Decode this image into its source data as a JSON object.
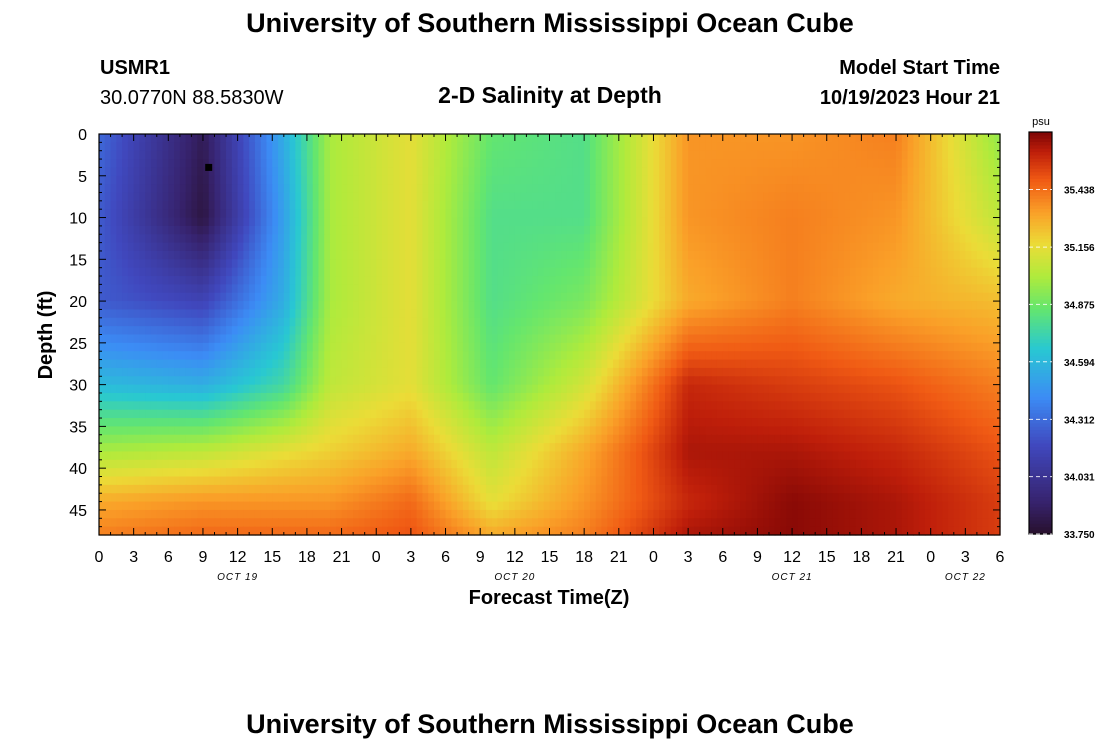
{
  "header": {
    "title": "University of Southern Mississippi Ocean Cube",
    "station_id": "USMR1",
    "station_coords": "30.0770N  88.5830W",
    "plot_title": "2-D Salinity at Depth",
    "model_start_label": "Model Start Time",
    "model_start_value": "10/19/2023 Hour 21"
  },
  "footer": {
    "title": "University of Southern Mississippi Ocean Cube"
  },
  "chart_data": {
    "type": "heatmap",
    "title": "2-D Salinity at Depth",
    "xlabel": "Forecast Time(Z)",
    "ylabel": "Depth (ft)",
    "x_range_hours": [
      0,
      78
    ],
    "x_tick_labels": [
      "0",
      "3",
      "6",
      "9",
      "12",
      "15",
      "18",
      "21",
      "0",
      "3",
      "6",
      "9",
      "12",
      "15",
      "18",
      "21",
      "0",
      "3",
      "6",
      "9",
      "12",
      "15",
      "18",
      "21",
      "0",
      "3",
      "6"
    ],
    "date_labels": [
      {
        "text": "OCT 19",
        "hour": 12
      },
      {
        "text": "OCT 20",
        "hour": 36
      },
      {
        "text": "OCT 21",
        "hour": 60
      },
      {
        "text": "OCT 22",
        "hour": 75
      }
    ],
    "ylim": [
      0,
      48
    ],
    "y_tick_labels": [
      "0",
      "5",
      "10",
      "15",
      "20",
      "25",
      "30",
      "35",
      "40",
      "45"
    ],
    "y_ticks": [
      0,
      5,
      10,
      15,
      20,
      25,
      30,
      35,
      40,
      45
    ],
    "colorbar": {
      "unit": "psu",
      "min": 33.75,
      "max": 35.72,
      "tick_values": [
        33.75,
        34.031,
        34.312,
        34.594,
        34.875,
        35.156,
        35.438
      ],
      "tick_labels": [
        "33.750",
        "34.031",
        "34.312",
        "34.594",
        "34.875",
        "35.156",
        "35.438"
      ]
    },
    "marker": {
      "hour": 9.5,
      "depth": 4
    },
    "salinity_grid": {
      "hours": [
        0,
        9,
        16,
        20,
        27,
        34,
        42,
        51,
        60,
        69,
        78
      ],
      "depths": [
        0,
        10,
        20,
        30,
        38,
        44,
        48
      ],
      "values": [
        [
          34.3,
          33.85,
          34.55,
          35.0,
          35.15,
          34.85,
          34.8,
          35.35,
          35.35,
          35.4,
          34.95
        ],
        [
          34.25,
          33.8,
          34.5,
          35.0,
          35.15,
          34.8,
          34.8,
          35.35,
          35.4,
          35.35,
          35.05
        ],
        [
          34.25,
          34.15,
          34.55,
          35.0,
          35.15,
          34.8,
          34.9,
          35.3,
          35.4,
          35.3,
          35.25
        ],
        [
          34.6,
          34.55,
          34.75,
          35.05,
          35.15,
          34.85,
          35.1,
          35.6,
          35.55,
          35.5,
          35.4
        ],
        [
          35.0,
          35.05,
          35.15,
          35.2,
          35.3,
          35.05,
          35.3,
          35.65,
          35.65,
          35.6,
          35.5
        ],
        [
          35.3,
          35.35,
          35.35,
          35.35,
          35.45,
          35.15,
          35.35,
          35.6,
          35.7,
          35.65,
          35.55
        ],
        [
          35.4,
          35.45,
          35.45,
          35.45,
          35.5,
          35.3,
          35.4,
          35.65,
          35.7,
          35.65,
          35.55
        ]
      ]
    }
  }
}
